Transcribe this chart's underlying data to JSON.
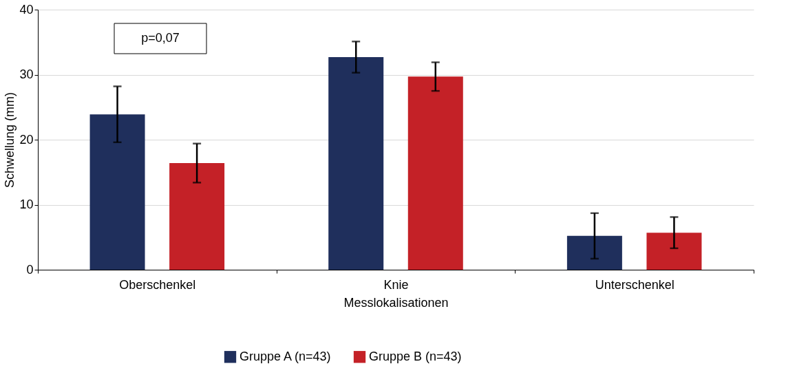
{
  "chart_data": {
    "type": "bar",
    "xlabel": "Messlokalisationen",
    "ylabel": "Schwellung (mm)",
    "categories": [
      "Oberschenkel",
      "Knie",
      "Unterschenkel"
    ],
    "series": [
      {
        "name": "Gruppe A (n=43)",
        "color": "#1f2f5c",
        "values": [
          23.9,
          32.7,
          5.2
        ],
        "errors": [
          4.3,
          2.4,
          3.5
        ]
      },
      {
        "name": "Gruppe B (n=43)",
        "color": "#c42127",
        "values": [
          16.4,
          29.7,
          5.7
        ],
        "errors": [
          3.0,
          2.2,
          2.4
        ]
      }
    ],
    "ylim": [
      0,
      40
    ],
    "yticks": [
      0,
      10,
      20,
      30,
      40
    ],
    "grid": "y",
    "legend": "bottom",
    "annotations": [
      "p=0,07"
    ]
  }
}
